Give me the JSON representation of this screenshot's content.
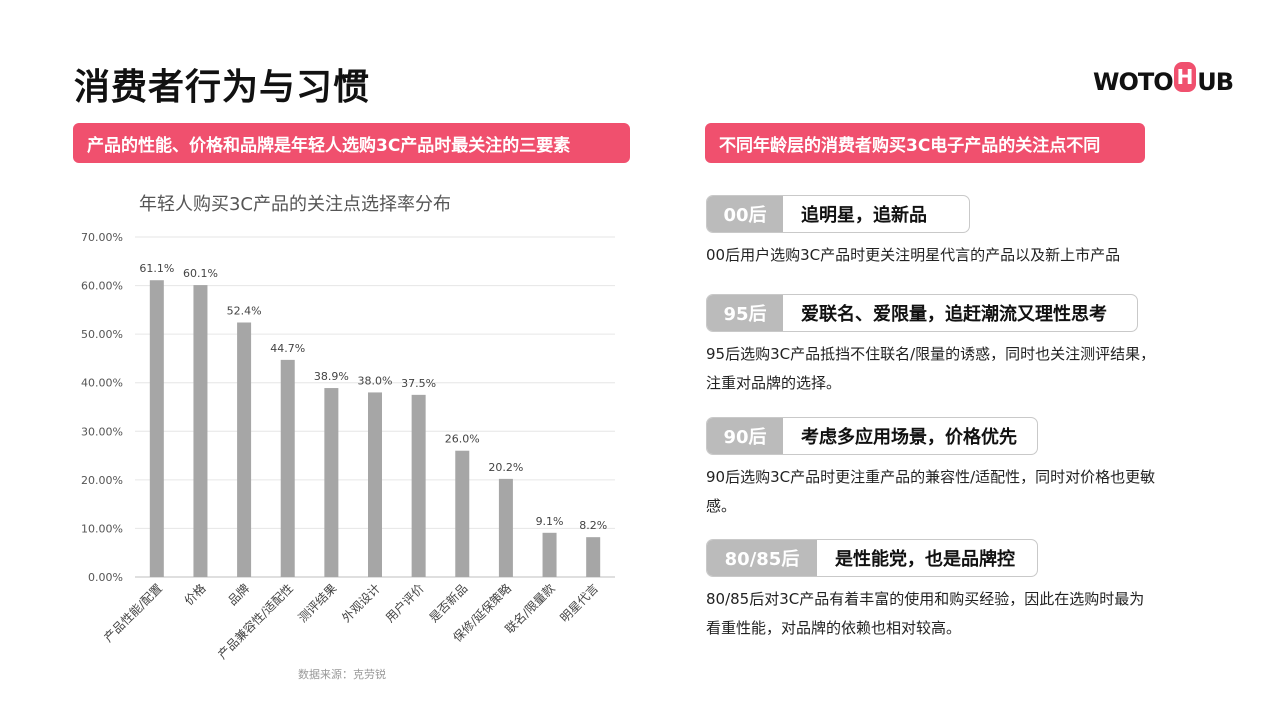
{
  "page": {
    "title": "消费者行为与习惯",
    "logo": {
      "part1": "WOTO",
      "badge": "H",
      "part2": "UB"
    }
  },
  "left_banner": "产品的性能、价格和品牌是年轻人选购3C产品时最关注的三要素",
  "right_banner": "不同年龄层的消费者购买3C电子产品的关注点不同",
  "chart_data": {
    "type": "bar",
    "title": "年轻人购买3C产品的关注点选择率分布",
    "categories": [
      "产品性能/配置",
      "价格",
      "品牌",
      "产品兼容性/适配性",
      "测评结果",
      "外观设计",
      "用户评价",
      "是否新品",
      "保修/延保策略",
      "联名/限量款",
      "明星代言"
    ],
    "values": [
      61.1,
      60.1,
      52.4,
      44.7,
      38.9,
      38.0,
      37.5,
      26.0,
      20.2,
      9.1,
      8.2
    ],
    "value_labels": [
      "61.1%",
      "60.1%",
      "52.4%",
      "44.7%",
      "38.9%",
      "38.0%",
      "37.5%",
      "26.0%",
      "20.2%",
      "9.1%",
      "8.2%"
    ],
    "y_ticks": [
      "0.00%",
      "10.00%",
      "20.00%",
      "30.00%",
      "40.00%",
      "50.00%",
      "60.00%",
      "70.00%"
    ],
    "ylim": [
      0,
      70
    ],
    "grid": true,
    "bar_color": "#a6a6a6",
    "source": "数据来源：克劳锐"
  },
  "segments": [
    {
      "age": "00后",
      "headline": "追明星，追新品",
      "desc": "00后用户选购3C产品时更关注明星代言的产品以及新上市产品"
    },
    {
      "age": "95后",
      "headline": "爱联名、爱限量，追赶潮流又理性思考",
      "desc": "95后选购3C产品抵挡不住联名/限量的诱惑，同时也关注测评结果，注重对品牌的选择。"
    },
    {
      "age": "90后",
      "headline": "考虑多应用场景，价格优先",
      "desc": "90后选购3C产品时更注重产品的兼容性/适配性，同时对价格也更敏感。"
    },
    {
      "age": "80/85后",
      "headline": "是性能党，也是品牌控",
      "desc": "80/85后对3C产品有着丰富的使用和购买经验，因此在选购时最为看重性能，对品牌的依赖也相对较高。"
    }
  ]
}
